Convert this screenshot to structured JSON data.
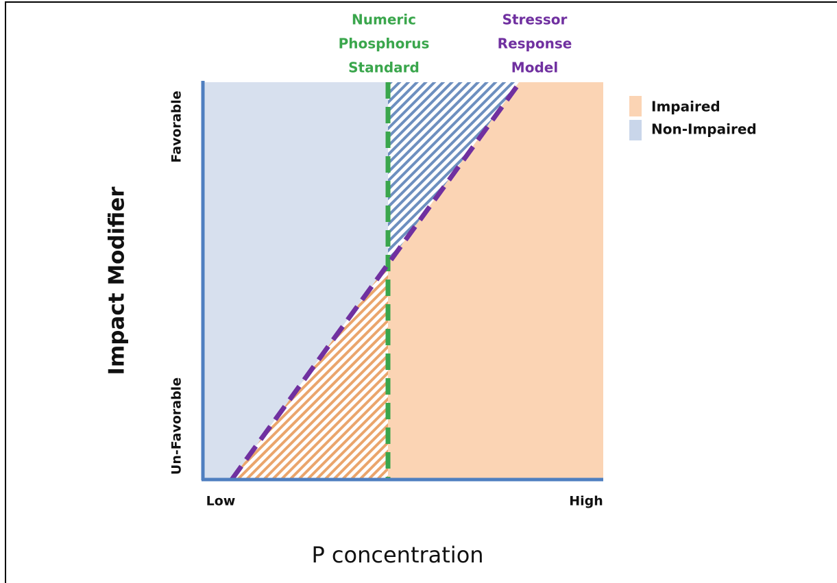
{
  "annotations": {
    "standard": [
      "Numeric",
      "Phosphorus",
      "Standard"
    ],
    "model": [
      "Stressor",
      "Response",
      "Model"
    ]
  },
  "legend": [
    "Impaired",
    "Non-Impaired"
  ],
  "y_axis": {
    "title": "Impact Modifier",
    "high": "Favorable",
    "low": "Un-Favorable"
  },
  "x_axis": {
    "title": "P concentration",
    "low": "Low",
    "high": "High"
  }
}
